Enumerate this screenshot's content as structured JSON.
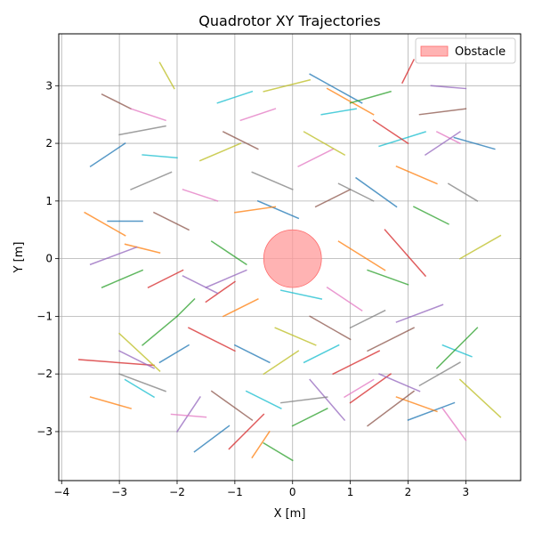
{
  "chart_data": {
    "type": "line",
    "title": "Quadrotor XY Trajectories",
    "xlabel": "X [m]",
    "ylabel": "Y [m]",
    "xlim": [
      -4.05,
      3.95
    ],
    "ylim": [
      -3.85,
      3.9
    ],
    "xticks": [
      -4,
      -3,
      -2,
      -1,
      0,
      1,
      2,
      3
    ],
    "yticks": [
      -3,
      -2,
      -1,
      0,
      1,
      2,
      3
    ],
    "grid": true,
    "legend": {
      "placement": "top-right",
      "entries": [
        {
          "label": "Obstacle",
          "color": "#ff9999"
        }
      ]
    },
    "obstacle": {
      "center": [
        0.0,
        0.0
      ],
      "radius": 0.5,
      "label": "Obstacle",
      "color": "#ff9999"
    },
    "palette": [
      "#1f77b4",
      "#ff7f0e",
      "#2ca02c",
      "#d62728",
      "#9467bd",
      "#8c564b",
      "#e377c2",
      "#7f7f7f",
      "#bcbd22",
      "#17becf"
    ],
    "series": [
      {
        "color": "#1f77b4",
        "x": [
          -3.5,
          -2.9
        ],
        "y": [
          1.6,
          2.0
        ]
      },
      {
        "color": "#ff7f0e",
        "x": [
          -3.6,
          -2.9
        ],
        "y": [
          0.8,
          0.4
        ]
      },
      {
        "color": "#2ca02c",
        "x": [
          -3.3,
          -2.6
        ],
        "y": [
          -0.5,
          -0.2
        ]
      },
      {
        "color": "#d62728",
        "x": [
          -3.7,
          -2.4
        ],
        "y": [
          -1.75,
          -1.85
        ]
      },
      {
        "color": "#9467bd",
        "x": [
          -3.0,
          -2.4
        ],
        "y": [
          -1.6,
          -1.9
        ]
      },
      {
        "color": "#8c564b",
        "x": [
          -3.3,
          -2.8
        ],
        "y": [
          2.85,
          2.6
        ]
      },
      {
        "color": "#e377c2",
        "x": [
          -2.8,
          -2.2
        ],
        "y": [
          2.6,
          2.4
        ]
      },
      {
        "color": "#7f7f7f",
        "x": [
          -3.0,
          -2.2
        ],
        "y": [
          2.15,
          2.3
        ]
      },
      {
        "color": "#bcbd22",
        "x": [
          -2.3,
          -2.05
        ],
        "y": [
          3.4,
          2.95
        ]
      },
      {
        "color": "#17becf",
        "x": [
          -2.6,
          -2.0
        ],
        "y": [
          1.8,
          1.75
        ]
      },
      {
        "color": "#1f77b4",
        "x": [
          -3.2,
          -2.6
        ],
        "y": [
          0.65,
          0.65
        ]
      },
      {
        "color": "#ff7f0e",
        "x": [
          -2.9,
          -2.3
        ],
        "y": [
          0.25,
          0.1
        ]
      },
      {
        "color": "#2ca02c",
        "x": [
          -2.0,
          -1.7
        ],
        "y": [
          -1.0,
          -0.7
        ]
      },
      {
        "color": "#d62728",
        "x": [
          -1.8,
          -1.0
        ],
        "y": [
          -1.2,
          -1.6
        ]
      },
      {
        "color": "#9467bd",
        "x": [
          -1.5,
          -0.8
        ],
        "y": [
          -0.5,
          -0.2
        ]
      },
      {
        "color": "#8c564b",
        "x": [
          -1.2,
          -0.6
        ],
        "y": [
          2.2,
          1.9
        ]
      },
      {
        "color": "#e377c2",
        "x": [
          -0.9,
          -0.3
        ],
        "y": [
          2.4,
          2.6
        ]
      },
      {
        "color": "#7f7f7f",
        "x": [
          -0.7,
          0.0
        ],
        "y": [
          1.5,
          1.2
        ]
      },
      {
        "color": "#bcbd22",
        "x": [
          -0.5,
          0.3
        ],
        "y": [
          2.9,
          3.1
        ]
      },
      {
        "color": "#17becf",
        "x": [
          -0.2,
          0.5
        ],
        "y": [
          -0.55,
          -0.7
        ]
      },
      {
        "color": "#1f77b4",
        "x": [
          0.3,
          1.2
        ],
        "y": [
          3.2,
          2.7
        ]
      },
      {
        "color": "#ff7f0e",
        "x": [
          0.6,
          1.4
        ],
        "y": [
          2.95,
          2.5
        ]
      },
      {
        "color": "#2ca02c",
        "x": [
          1.0,
          1.7
        ],
        "y": [
          2.7,
          2.9
        ]
      },
      {
        "color": "#d62728",
        "x": [
          1.9,
          2.1
        ],
        "y": [
          3.05,
          3.45
        ]
      },
      {
        "color": "#9467bd",
        "x": [
          2.4,
          3.0
        ],
        "y": [
          3.0,
          2.95
        ]
      },
      {
        "color": "#8c564b",
        "x": [
          2.2,
          3.0
        ],
        "y": [
          2.5,
          2.6
        ]
      },
      {
        "color": "#e377c2",
        "x": [
          2.5,
          2.9
        ],
        "y": [
          2.2,
          2.0
        ]
      },
      {
        "color": "#7f7f7f",
        "x": [
          2.7,
          3.2
        ],
        "y": [
          1.3,
          1.0
        ]
      },
      {
        "color": "#bcbd22",
        "x": [
          2.9,
          3.6
        ],
        "y": [
          0.0,
          0.4
        ]
      },
      {
        "color": "#17becf",
        "x": [
          1.5,
          2.3
        ],
        "y": [
          1.95,
          2.2
        ]
      },
      {
        "color": "#1f77b4",
        "x": [
          2.8,
          3.5
        ],
        "y": [
          2.1,
          1.9
        ]
      },
      {
        "color": "#ff7f0e",
        "x": [
          0.8,
          1.6
        ],
        "y": [
          0.3,
          -0.2
        ]
      },
      {
        "color": "#2ca02c",
        "x": [
          1.3,
          2.0
        ],
        "y": [
          -0.2,
          -0.45
        ]
      },
      {
        "color": "#d62728",
        "x": [
          1.6,
          2.3
        ],
        "y": [
          0.5,
          -0.3
        ]
      },
      {
        "color": "#9467bd",
        "x": [
          1.8,
          2.6
        ],
        "y": [
          -1.1,
          -0.8
        ]
      },
      {
        "color": "#8c564b",
        "x": [
          1.3,
          2.1
        ],
        "y": [
          -1.6,
          -1.2
        ]
      },
      {
        "color": "#e377c2",
        "x": [
          2.6,
          3.0
        ],
        "y": [
          -2.6,
          -3.15
        ]
      },
      {
        "color": "#7f7f7f",
        "x": [
          2.2,
          2.9
        ],
        "y": [
          -2.2,
          -1.8
        ]
      },
      {
        "color": "#bcbd22",
        "x": [
          2.9,
          3.6
        ],
        "y": [
          -2.1,
          -2.75
        ]
      },
      {
        "color": "#17becf",
        "x": [
          2.6,
          3.1
        ],
        "y": [
          -1.5,
          -1.7
        ]
      },
      {
        "color": "#1f77b4",
        "x": [
          2.0,
          2.8
        ],
        "y": [
          -2.8,
          -2.5
        ]
      },
      {
        "color": "#ff7f0e",
        "x": [
          1.8,
          2.5
        ],
        "y": [
          -2.4,
          -2.65
        ]
      },
      {
        "color": "#2ca02c",
        "x": [
          2.5,
          3.2
        ],
        "y": [
          -1.9,
          -1.2
        ]
      },
      {
        "color": "#d62728",
        "x": [
          0.7,
          1.5
        ],
        "y": [
          -2.0,
          -1.6
        ]
      },
      {
        "color": "#9467bd",
        "x": [
          0.3,
          0.9
        ],
        "y": [
          -2.1,
          -2.8
        ]
      },
      {
        "color": "#8c564b",
        "x": [
          1.3,
          2.1
        ],
        "y": [
          -2.9,
          -2.3
        ]
      },
      {
        "color": "#e377c2",
        "x": [
          0.9,
          1.4
        ],
        "y": [
          -2.4,
          -2.1
        ]
      },
      {
        "color": "#7f7f7f",
        "x": [
          -0.2,
          0.6
        ],
        "y": [
          -2.5,
          -2.4
        ]
      },
      {
        "color": "#bcbd22",
        "x": [
          -0.5,
          0.1
        ],
        "y": [
          -2.0,
          -1.6
        ]
      },
      {
        "color": "#17becf",
        "x": [
          -0.8,
          -0.2
        ],
        "y": [
          -2.3,
          -2.6
        ]
      },
      {
        "color": "#1f77b4",
        "x": [
          -1.7,
          -1.1
        ],
        "y": [
          -3.35,
          -2.9
        ]
      },
      {
        "color": "#ff7f0e",
        "x": [
          -0.7,
          -0.4
        ],
        "y": [
          -3.45,
          -3.0
        ]
      },
      {
        "color": "#2ca02c",
        "x": [
          -0.5,
          0.0
        ],
        "y": [
          -3.2,
          -3.5
        ]
      },
      {
        "color": "#d62728",
        "x": [
          -1.1,
          -0.5
        ],
        "y": [
          -3.3,
          -2.7
        ]
      },
      {
        "color": "#9467bd",
        "x": [
          -2.0,
          -1.6
        ],
        "y": [
          -3.0,
          -2.4
        ]
      },
      {
        "color": "#8c564b",
        "x": [
          -1.4,
          -0.7
        ],
        "y": [
          -2.3,
          -2.8
        ]
      },
      {
        "color": "#e377c2",
        "x": [
          -2.1,
          -1.5
        ],
        "y": [
          -2.7,
          -2.75
        ]
      },
      {
        "color": "#7f7f7f",
        "x": [
          -3.0,
          -2.2
        ],
        "y": [
          -2.0,
          -2.3
        ]
      },
      {
        "color": "#bcbd22",
        "x": [
          -3.0,
          -2.3
        ],
        "y": [
          -1.3,
          -1.95
        ]
      },
      {
        "color": "#17becf",
        "x": [
          -2.9,
          -2.4
        ],
        "y": [
          -2.1,
          -2.4
        ]
      },
      {
        "color": "#1f77b4",
        "x": [
          -2.3,
          -1.8
        ],
        "y": [
          -1.8,
          -1.5
        ]
      },
      {
        "color": "#ff7f0e",
        "x": [
          -3.5,
          -2.8
        ],
        "y": [
          -2.4,
          -2.6
        ]
      },
      {
        "color": "#2ca02c",
        "x": [
          -2.6,
          -2.0
        ],
        "y": [
          -1.5,
          -1.0
        ]
      },
      {
        "color": "#d62728",
        "x": [
          -2.5,
          -1.9
        ],
        "y": [
          -0.5,
          -0.2
        ]
      },
      {
        "color": "#9467bd",
        "x": [
          -3.5,
          -2.7
        ],
        "y": [
          -0.1,
          0.2
        ]
      },
      {
        "color": "#8c564b",
        "x": [
          -2.4,
          -1.8
        ],
        "y": [
          0.8,
          0.5
        ]
      },
      {
        "color": "#e377c2",
        "x": [
          -1.9,
          -1.3
        ],
        "y": [
          1.2,
          1.0
        ]
      },
      {
        "color": "#7f7f7f",
        "x": [
          -2.8,
          -2.1
        ],
        "y": [
          1.2,
          1.5
        ]
      },
      {
        "color": "#bcbd22",
        "x": [
          -1.6,
          -0.9
        ],
        "y": [
          1.7,
          2.0
        ]
      },
      {
        "color": "#17becf",
        "x": [
          -1.3,
          -0.7
        ],
        "y": [
          2.7,
          2.9
        ]
      },
      {
        "color": "#1f77b4",
        "x": [
          -0.6,
          0.1
        ],
        "y": [
          1.0,
          0.7
        ]
      },
      {
        "color": "#ff7f0e",
        "x": [
          -1.0,
          -0.3
        ],
        "y": [
          0.8,
          0.9
        ]
      },
      {
        "color": "#2ca02c",
        "x": [
          -1.4,
          -0.8
        ],
        "y": [
          0.3,
          -0.1
        ]
      },
      {
        "color": "#d62728",
        "x": [
          -1.5,
          -1.0
        ],
        "y": [
          -0.75,
          -0.4
        ]
      },
      {
        "color": "#9467bd",
        "x": [
          -1.9,
          -1.3
        ],
        "y": [
          -0.3,
          -0.6
        ]
      },
      {
        "color": "#8c564b",
        "x": [
          0.4,
          1.0
        ],
        "y": [
          0.9,
          1.2
        ]
      },
      {
        "color": "#e377c2",
        "x": [
          0.1,
          0.7
        ],
        "y": [
          1.6,
          1.9
        ]
      },
      {
        "color": "#7f7f7f",
        "x": [
          0.8,
          1.4
        ],
        "y": [
          1.3,
          1.0
        ]
      },
      {
        "color": "#bcbd22",
        "x": [
          0.2,
          0.9
        ],
        "y": [
          2.2,
          1.8
        ]
      },
      {
        "color": "#17becf",
        "x": [
          0.5,
          1.1
        ],
        "y": [
          2.5,
          2.6
        ]
      },
      {
        "color": "#1f77b4",
        "x": [
          1.1,
          1.8
        ],
        "y": [
          1.4,
          0.9
        ]
      },
      {
        "color": "#ff7f0e",
        "x": [
          1.8,
          2.5
        ],
        "y": [
          1.6,
          1.3
        ]
      },
      {
        "color": "#2ca02c",
        "x": [
          2.1,
          2.7
        ],
        "y": [
          0.9,
          0.6
        ]
      },
      {
        "color": "#d62728",
        "x": [
          1.4,
          2.0
        ],
        "y": [
          2.4,
          2.0
        ]
      },
      {
        "color": "#9467bd",
        "x": [
          2.3,
          2.9
        ],
        "y": [
          1.8,
          2.2
        ]
      },
      {
        "color": "#8c564b",
        "x": [
          0.3,
          1.0
        ],
        "y": [
          -1.0,
          -1.4
        ]
      },
      {
        "color": "#e377c2",
        "x": [
          0.6,
          1.2
        ],
        "y": [
          -0.5,
          -0.9
        ]
      },
      {
        "color": "#7f7f7f",
        "x": [
          1.0,
          1.6
        ],
        "y": [
          -1.2,
          -0.9
        ]
      },
      {
        "color": "#bcbd22",
        "x": [
          -0.3,
          0.4
        ],
        "y": [
          -1.2,
          -1.5
        ]
      },
      {
        "color": "#17becf",
        "x": [
          0.2,
          0.8
        ],
        "y": [
          -1.8,
          -1.5
        ]
      },
      {
        "color": "#1f77b4",
        "x": [
          -1.0,
          -0.4
        ],
        "y": [
          -1.5,
          -1.8
        ]
      },
      {
        "color": "#ff7f0e",
        "x": [
          -1.2,
          -0.6
        ],
        "y": [
          -1.0,
          -0.7
        ]
      },
      {
        "color": "#2ca02c",
        "x": [
          0.0,
          0.6
        ],
        "y": [
          -2.9,
          -2.6
        ]
      },
      {
        "color": "#d62728",
        "x": [
          1.0,
          1.7
        ],
        "y": [
          -2.5,
          -2.0
        ]
      },
      {
        "color": "#9467bd",
        "x": [
          1.5,
          2.2
        ],
        "y": [
          -2.0,
          -2.3
        ]
      }
    ]
  }
}
